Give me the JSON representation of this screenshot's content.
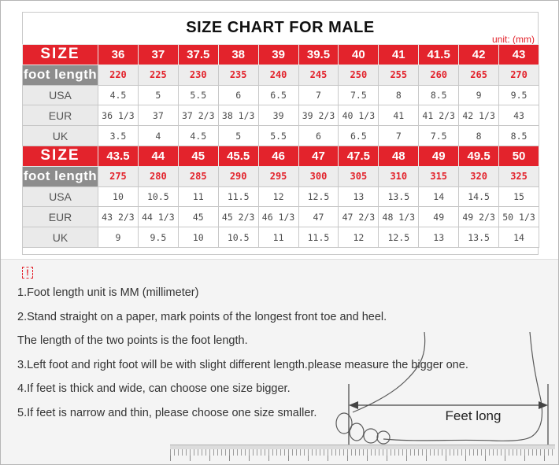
{
  "title": "SIZE CHART FOR MALE",
  "unit_label": "unit: (mm)",
  "colors": {
    "accent_red": "#e3232c",
    "foot_length_header_gray": "#8d8d8d"
  },
  "table": {
    "blocks": [
      {
        "size_label": "SIZE",
        "foot_length_label": "foot length",
        "sizes": [
          "36",
          "37",
          "37.5",
          "38",
          "39",
          "39.5",
          "40",
          "41",
          "41.5",
          "42",
          "43"
        ],
        "foot_lengths": [
          "220",
          "225",
          "230",
          "235",
          "240",
          "245",
          "250",
          "255",
          "260",
          "265",
          "270"
        ],
        "rows": [
          {
            "label": "USA",
            "values": [
              "4.5",
              "5",
              "5.5",
              "6",
              "6.5",
              "7",
              "7.5",
              "8",
              "8.5",
              "9",
              "9.5"
            ]
          },
          {
            "label": "EUR",
            "values": [
              "36 1/3",
              "37",
              "37 2/3",
              "38 1/3",
              "39",
              "39 2/3",
              "40 1/3",
              "41",
              "41 2/3",
              "42 1/3",
              "43"
            ]
          },
          {
            "label": "UK",
            "values": [
              "3.5",
              "4",
              "4.5",
              "5",
              "5.5",
              "6",
              "6.5",
              "7",
              "7.5",
              "8",
              "8.5"
            ]
          }
        ]
      },
      {
        "size_label": "SIZE",
        "foot_length_label": "foot length",
        "sizes": [
          "43.5",
          "44",
          "45",
          "45.5",
          "46",
          "47",
          "47.5",
          "48",
          "49",
          "49.5",
          "50"
        ],
        "foot_lengths": [
          "275",
          "280",
          "285",
          "290",
          "295",
          "300",
          "305",
          "310",
          "315",
          "320",
          "325"
        ],
        "rows": [
          {
            "label": "USA",
            "values": [
              "10",
              "10.5",
              "11",
              "11.5",
              "12",
              "12.5",
              "13",
              "13.5",
              "14",
              "14.5",
              "15"
            ]
          },
          {
            "label": "EUR",
            "values": [
              "43 2/3",
              "44 1/3",
              "45",
              "45 2/3",
              "46 1/3",
              "47",
              "47 2/3",
              "48 1/3",
              "49",
              "49 2/3",
              "50 1/3"
            ]
          },
          {
            "label": "UK",
            "values": [
              "9",
              "9.5",
              "10",
              "10.5",
              "11",
              "11.5",
              "12",
              "12.5",
              "13",
              "13.5",
              "14"
            ]
          }
        ]
      }
    ]
  },
  "notes": {
    "warning_icon": "!",
    "items": [
      "1.Foot length unit is MM (millimeter)",
      "2.Stand straight on a paper, mark points of the longest front toe and heel.",
      "The length of the two points is the foot length.",
      "3.Left foot and right foot will be with slight different length.please measure the bigger one.",
      "4.If feet is thick and wide, can choose one size bigger.",
      "5.If feet is narrow and thin, please choose one size smaller."
    ]
  },
  "diagram": {
    "label": "Feet long"
  }
}
